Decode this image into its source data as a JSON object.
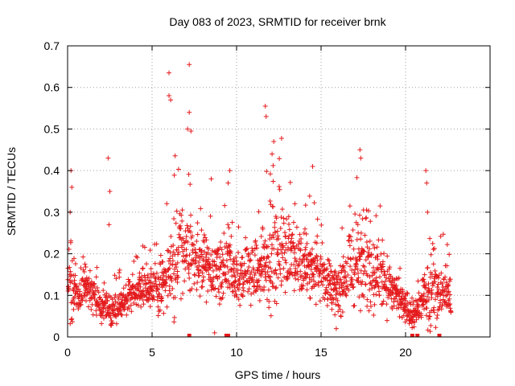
{
  "chart_data": {
    "type": "scatter",
    "title": "Day 083 of 2023, SRMTID for receiver brnk",
    "xlabel": "GPS time / hours",
    "ylabel": "SRMTID / TECUs",
    "xlim": [
      0,
      25
    ],
    "ylim": [
      0,
      0.7
    ],
    "xticks": [
      0,
      5,
      10,
      15,
      20
    ],
    "xtick_labels": [
      "0",
      "5",
      "10",
      "15",
      "20"
    ],
    "yticks": [
      0,
      0.1,
      0.2,
      0.3,
      0.4,
      0.5,
      0.6,
      0.7
    ],
    "ytick_labels": [
      "0",
      "0.1",
      "0.2",
      "0.3",
      "0.4",
      "0.5",
      "0.6",
      "0.7"
    ],
    "grid": true,
    "marker": "+",
    "color": "#e41a1c",
    "series": [
      {
        "name": "SRMTID",
        "envelope_x": [
          0.0,
          0.3,
          0.6,
          1.0,
          1.5,
          2.0,
          2.5,
          3.0,
          3.5,
          4.0,
          4.5,
          5.0,
          5.5,
          6.0,
          6.5,
          7.0,
          7.5,
          8.0,
          8.5,
          9.0,
          9.5,
          10.0,
          10.5,
          11.0,
          11.5,
          12.0,
          12.5,
          13.0,
          13.5,
          14.0,
          14.5,
          15.0,
          15.5,
          16.0,
          16.5,
          17.0,
          17.5,
          18.0,
          18.5,
          19.0,
          19.5,
          20.0,
          20.5,
          21.0,
          21.5,
          22.0,
          22.5
        ],
        "envelope_median": [
          0.14,
          0.11,
          0.09,
          0.13,
          0.1,
          0.07,
          0.06,
          0.07,
          0.09,
          0.11,
          0.12,
          0.11,
          0.12,
          0.15,
          0.2,
          0.21,
          0.18,
          0.19,
          0.14,
          0.15,
          0.17,
          0.14,
          0.15,
          0.15,
          0.15,
          0.19,
          0.22,
          0.2,
          0.19,
          0.18,
          0.17,
          0.15,
          0.13,
          0.11,
          0.15,
          0.17,
          0.19,
          0.16,
          0.15,
          0.12,
          0.1,
          0.07,
          0.05,
          0.09,
          0.12,
          0.11,
          0.1
        ],
        "envelope_spread": [
          0.08,
          0.15,
          0.06,
          0.06,
          0.05,
          0.05,
          0.06,
          0.05,
          0.05,
          0.06,
          0.06,
          0.06,
          0.07,
          0.12,
          0.16,
          0.12,
          0.1,
          0.1,
          0.09,
          0.12,
          0.12,
          0.09,
          0.08,
          0.08,
          0.1,
          0.18,
          0.18,
          0.12,
          0.1,
          0.1,
          0.09,
          0.1,
          0.08,
          0.08,
          0.1,
          0.12,
          0.16,
          0.12,
          0.12,
          0.09,
          0.06,
          0.05,
          0.04,
          0.06,
          0.15,
          0.08,
          0.08
        ],
        "outliers": [
          {
            "x": 6.0,
            "y": 0.635
          },
          {
            "x": 6.0,
            "y": 0.58
          },
          {
            "x": 6.1,
            "y": 0.57
          },
          {
            "x": 7.2,
            "y": 0.655
          },
          {
            "x": 7.2,
            "y": 0.54
          },
          {
            "x": 7.1,
            "y": 0.5
          },
          {
            "x": 7.3,
            "y": 0.495
          },
          {
            "x": 2.4,
            "y": 0.43
          },
          {
            "x": 2.5,
            "y": 0.35
          },
          {
            "x": 2.45,
            "y": 0.27
          },
          {
            "x": 0.2,
            "y": 0.4
          },
          {
            "x": 0.25,
            "y": 0.36
          },
          {
            "x": 0.15,
            "y": 0.3
          },
          {
            "x": 11.7,
            "y": 0.555
          },
          {
            "x": 11.75,
            "y": 0.53
          },
          {
            "x": 12.2,
            "y": 0.47
          },
          {
            "x": 12.1,
            "y": 0.44
          },
          {
            "x": 17.3,
            "y": 0.45
          },
          {
            "x": 17.35,
            "y": 0.43
          },
          {
            "x": 21.2,
            "y": 0.4
          },
          {
            "x": 21.25,
            "y": 0.37
          },
          {
            "x": 21.3,
            "y": 0.3
          },
          {
            "x": 9.6,
            "y": 0.4
          },
          {
            "x": 9.5,
            "y": 0.37
          },
          {
            "x": 8.5,
            "y": 0.38
          },
          {
            "x": 14.5,
            "y": 0.41
          },
          {
            "x": 15.9,
            "y": 0.02
          },
          {
            "x": 8.7,
            "y": 0.01
          }
        ],
        "zero_values_x": [
          7.2,
          9.4,
          9.5,
          20.4,
          20.7,
          22.0
        ]
      }
    ]
  }
}
